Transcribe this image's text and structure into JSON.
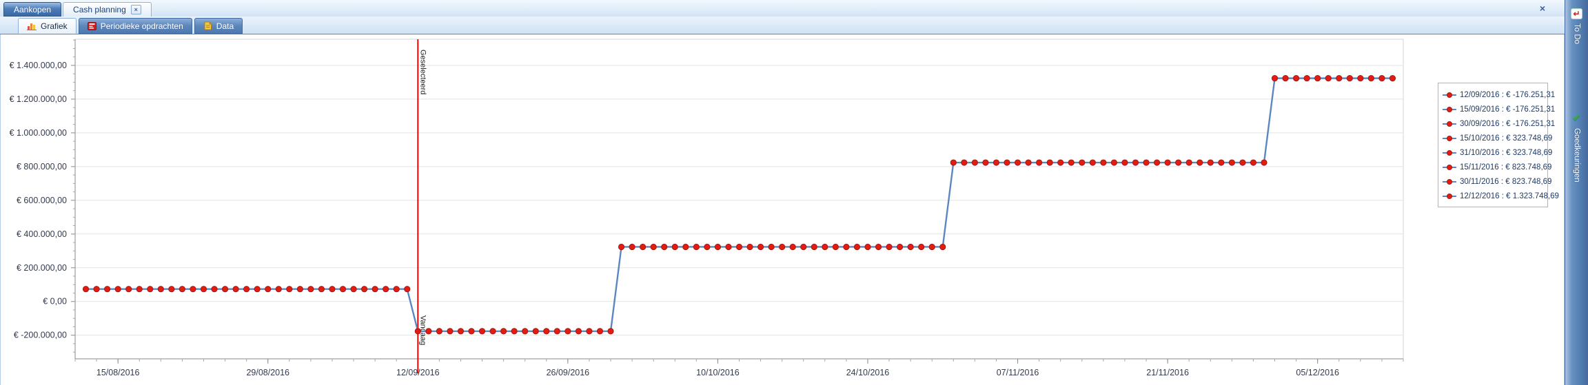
{
  "icons": {
    "close": "×",
    "check": "✔",
    "todo_arrow": "↵"
  },
  "tabs": {
    "main": [
      {
        "label": "Aankopen"
      },
      {
        "label": "Cash planning"
      }
    ],
    "sub": [
      {
        "label": "Grafiek"
      },
      {
        "label": "Periodieke opdrachten"
      },
      {
        "label": "Data"
      }
    ]
  },
  "sidebar": {
    "items": [
      {
        "label": "To Do"
      },
      {
        "label": "Goedkeuringen"
      }
    ]
  },
  "chart_data": {
    "type": "line",
    "subtype": "daily-step-series",
    "currency": "EUR",
    "x_range": [
      "11/08/2016",
      "13/12/2016"
    ],
    "ylim": [
      -340000,
      1555000
    ],
    "grid": "horizontal-only",
    "legend_position": "top-right",
    "x_tick_labels": [
      "15/08/2016",
      "29/08/2016",
      "12/09/2016",
      "26/09/2016",
      "10/10/2016",
      "24/10/2016",
      "07/11/2016",
      "21/11/2016",
      "05/12/2016"
    ],
    "y_ticks": [
      {
        "label": "€ 1.400.000,00",
        "value": 1400000
      },
      {
        "label": "€ 1.200.000,00",
        "value": 1200000
      },
      {
        "label": "€ 1.000.000,00",
        "value": 1000000
      },
      {
        "label": "€ 800.000,00",
        "value": 800000
      },
      {
        "label": "€ 600.000,00",
        "value": 600000
      },
      {
        "label": "€ 400.000,00",
        "value": 400000
      },
      {
        "label": "€ 200.000,00",
        "value": 200000
      },
      {
        "label": "€ 0,00",
        "value": 0
      },
      {
        "label": "€ -200.000,00",
        "value": -200000
      }
    ],
    "segments": [
      {
        "start": "12/08/2016",
        "end": "11/09/2016",
        "value": 73748.69
      },
      {
        "start": "12/09/2016",
        "end": "30/09/2016",
        "value": -176251.31
      },
      {
        "start": "01/10/2016",
        "end": "31/10/2016",
        "value": 323748.69
      },
      {
        "start": "01/11/2016",
        "end": "30/11/2016",
        "value": 823748.69
      },
      {
        "start": "01/12/2016",
        "end": "12/12/2016",
        "value": 1323748.69
      }
    ],
    "annotations": {
      "selected_date": "12/09/2016",
      "selected_label": "Geselecteerd",
      "today_label": "Vandaag"
    },
    "legend": [
      "12/09/2016 : € -176.251,31",
      "15/09/2016 : € -176.251,31",
      "30/09/2016 : € -176.251,31",
      "15/10/2016 : € 323.748,69",
      "31/10/2016 : € 323.748,69",
      "15/11/2016 : € 823.748,69",
      "30/11/2016 : € 823.748,69",
      "12/12/2016 : € 1.323.748,69"
    ],
    "colors": {
      "line": "#5b87c0",
      "marker": "#e41c0f",
      "marker_border": "#a01818",
      "selected_line": "#fe0000",
      "grid": "#e3e3e3",
      "axis": "#8a8a8a",
      "tick_text": "#333a4d",
      "legend_text": "#1d3a66"
    }
  }
}
